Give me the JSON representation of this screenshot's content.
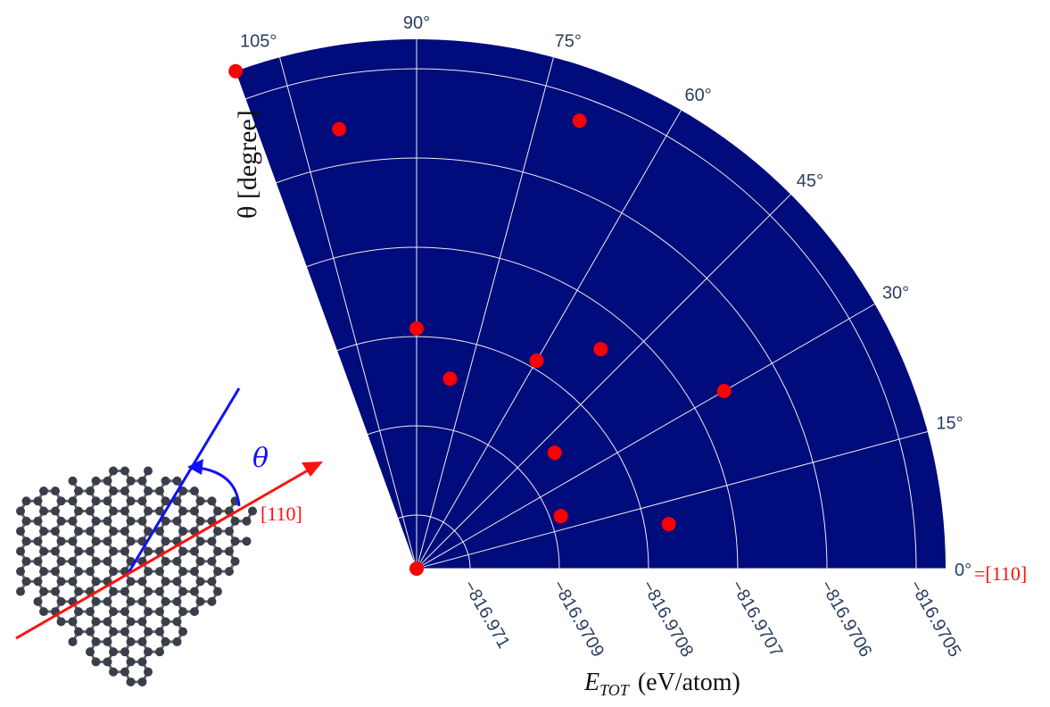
{
  "chart_data": {
    "type": "polar-scatter",
    "radial_axis_title": {
      "symbol": "E",
      "subscript": "TOT",
      "unit": "(eV/atom)"
    },
    "angular_axis_title": "θ [degree]",
    "zero_annotation": "=[110]",
    "inset_labels": {
      "angle": "θ",
      "direction": "[110]"
    },
    "rlim": [
      -816.97106,
      -816.970467
    ],
    "rticks": [
      {
        "value": -816.971,
        "label": "−816.971"
      },
      {
        "value": -816.9709,
        "label": "−816.9709"
      },
      {
        "value": -816.9708,
        "label": "−816.9708"
      },
      {
        "value": -816.9707,
        "label": "−816.9707"
      },
      {
        "value": -816.9706,
        "label": "−816.9706"
      },
      {
        "value": -816.9705,
        "label": "−816.9705"
      }
    ],
    "thetalim": [
      0,
      110
    ],
    "thetaticks": [
      {
        "value": 0,
        "label": "0°"
      },
      {
        "value": 15,
        "label": "15°"
      },
      {
        "value": 30,
        "label": "30°"
      },
      {
        "value": 45,
        "label": "45°"
      },
      {
        "value": 60,
        "label": "60°"
      },
      {
        "value": 75,
        "label": "75°"
      },
      {
        "value": 90,
        "label": "90°"
      },
      {
        "value": 105,
        "label": "105°"
      }
    ],
    "background": "#000b7c",
    "grid": true,
    "series": [
      {
        "color": "#ff0000",
        "theta": [
          110,
          100,
          70,
          90,
          80,
          60,
          50,
          30,
          40,
          20,
          10,
          0
        ],
        "r": [
          -816.970467,
          -816.97056,
          -816.970526,
          -816.970791,
          -816.970844,
          -816.970791,
          -816.970739,
          -816.970662,
          -816.970858,
          -816.970888,
          -816.970773,
          -816.97106
        ]
      }
    ]
  }
}
